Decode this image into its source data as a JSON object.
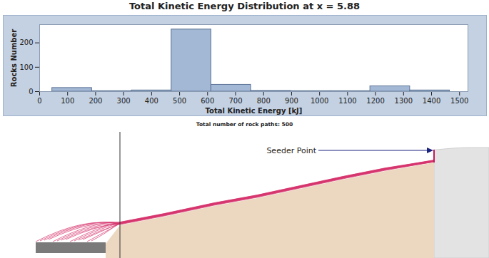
{
  "chart_data": {
    "type": "histogram",
    "title": "Total Kinetic Energy Distribution at x = 5.88",
    "x_label": "Total Kinetic Energy [kJ]",
    "y_label": "Rocks Number",
    "bins": [
      45,
      187,
      329,
      471,
      613,
      755,
      897,
      1039,
      1181,
      1323,
      1465
    ],
    "values": [
      15,
      2,
      5,
      255,
      28,
      3,
      2,
      2,
      22,
      5
    ],
    "color": "#a3b8d4",
    "xlim": [
      0,
      1530
    ],
    "xticks": [
      0,
      100,
      200,
      300,
      400,
      500,
      600,
      700,
      800,
      900,
      1000,
      1100,
      1200,
      1300,
      1400,
      1500
    ],
    "ylim": [
      0,
      275
    ],
    "yticks": [
      0,
      100,
      200
    ],
    "grid": false,
    "caption": "Total number of rock paths:  500",
    "annotation": "Seeder Point"
  }
}
